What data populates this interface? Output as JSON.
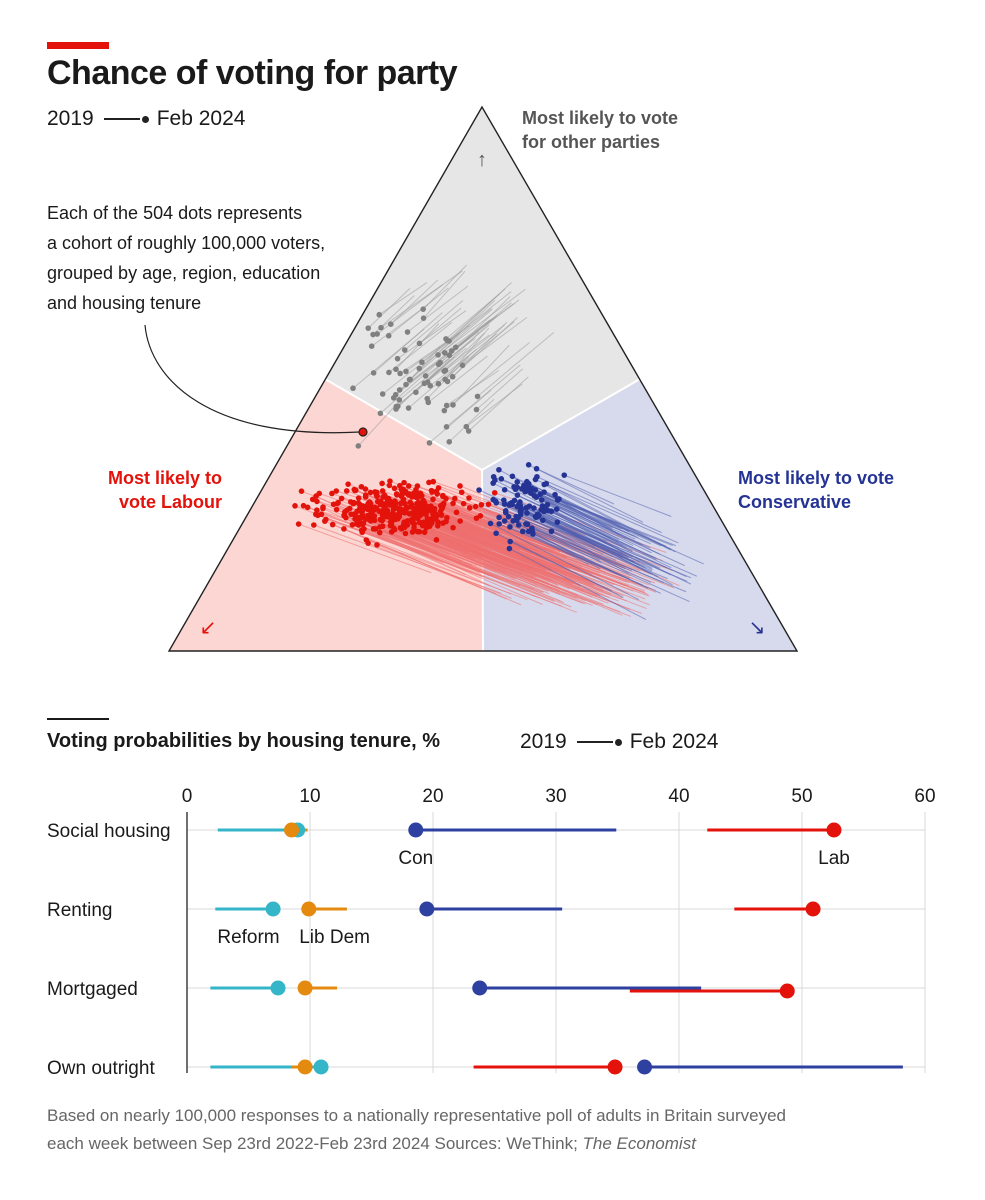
{
  "header": {
    "title": "Chance of voting for party",
    "legend_start": "2019",
    "legend_end": "Feb 2024"
  },
  "ternary": {
    "annotation": [
      "Each of the 504 dots represents",
      "a cohort of roughly 100,000 voters,",
      "grouped by age, region, education",
      "and housing tenure"
    ],
    "label_other": [
      "Most likely to vote",
      "for other parties"
    ],
    "label_labour": [
      "Most likely to",
      "vote Labour"
    ],
    "label_conservative": [
      "Most likely to vote",
      "Conservative"
    ],
    "arrow_up": "↑",
    "arrow_left": "↙",
    "arrow_right": "↘",
    "dot_count": 504,
    "colors": {
      "other": "#808080",
      "labour": "#e3120b",
      "conservative": "#253494",
      "other_region": "#e6e6e6",
      "labour_region": "#fcd6d2",
      "conservative_region": "#d7daec"
    }
  },
  "chart_data": {
    "type": "dumbbell",
    "title": "Voting probabilities by housing tenure, %",
    "legend_start": "2019",
    "legend_end": "Feb 2024",
    "xlim": [
      0,
      60
    ],
    "x_ticks": [
      "0",
      "10",
      "20",
      "30",
      "40",
      "50",
      "60"
    ],
    "x_tick_values": [
      0,
      10,
      20,
      30,
      40,
      50,
      60
    ],
    "categories": [
      "Social housing",
      "Renting",
      "Mortgaged",
      "Own outright"
    ],
    "series": [
      {
        "name": "Reform",
        "color": "#34b6c8",
        "start": [
          2.5,
          2.3,
          1.9,
          1.9
        ],
        "end": [
          9.0,
          7.0,
          7.4,
          10.9
        ]
      },
      {
        "name": "Lib Dem",
        "color": "#e38a0f",
        "start": [
          9.8,
          13.0,
          12.2,
          8.5
        ],
        "end": [
          8.5,
          9.9,
          9.6,
          9.6
        ]
      },
      {
        "name": "Con",
        "color": "#2e40a0",
        "start": [
          34.9,
          30.5,
          41.8,
          58.2
        ],
        "end": [
          18.6,
          19.5,
          23.8,
          37.2
        ]
      },
      {
        "name": "Lab",
        "color": "#e3120b",
        "start": [
          42.3,
          44.5,
          36.0,
          23.3
        ],
        "end": [
          52.6,
          50.9,
          48.8,
          34.8
        ]
      }
    ],
    "series_labels": [
      {
        "text": "Reform",
        "x": 5.0,
        "row": 1
      },
      {
        "text": "Lib Dem",
        "x": 12.0,
        "row": 1
      },
      {
        "text": "Con",
        "x": 18.6,
        "row": 0
      },
      {
        "text": "Lab",
        "x": 52.6,
        "row": 0
      }
    ]
  },
  "footer": {
    "note_line1": "Based on nearly 100,000 responses to a nationally representative poll of adults in Britain surveyed",
    "note_line2": "each week between Sep 23rd 2022-Feb 23rd 2024 Sources: WeThink; ",
    "source_publication": "The Economist"
  }
}
